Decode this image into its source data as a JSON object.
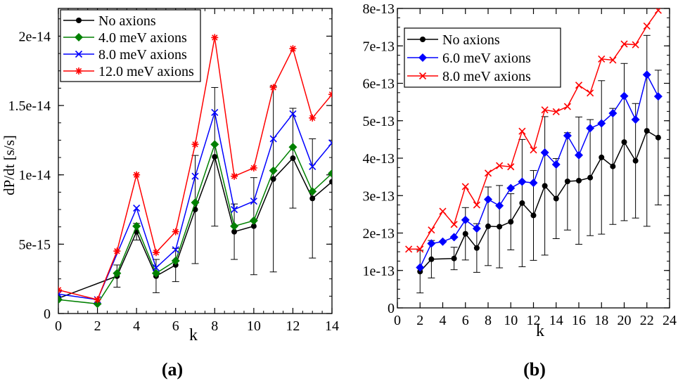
{
  "figure": {
    "panels": [
      "(a)",
      "(b)"
    ]
  },
  "chart_data": [
    {
      "type": "line",
      "panel_label": "(a)",
      "xlabel": "k",
      "ylabel": "dP/dt [s/s]",
      "xlim": [
        0,
        14
      ],
      "ylim": [
        0,
        2.2e-14
      ],
      "xticks": [
        "0",
        "2",
        "4",
        "6",
        "8",
        "10",
        "12",
        "14"
      ],
      "yticks": [
        "0",
        "5e-15",
        "1e-14",
        "1.5e-14",
        "2e-14"
      ],
      "grid": false,
      "legend_position": "top-left",
      "series": [
        {
          "name": "No axions",
          "color": "#000000",
          "marker": "circle",
          "x": [
            0,
            3,
            4,
            5,
            6,
            7,
            8,
            9,
            10,
            11,
            12,
            13,
            14
          ],
          "y": [
            1.1e-15,
            2.7e-15,
            5.9e-15,
            2.7e-15,
            3.5e-15,
            7.5e-15,
            1.13e-14,
            5.9e-15,
            6.3e-15,
            9.7e-15,
            1.12e-14,
            8.3e-15,
            9.5e-15
          ],
          "err": [
            null,
            8e-16,
            6e-16,
            1.2e-15,
            1.2e-15,
            3.9e-15,
            5e-15,
            2e-15,
            3.5e-15,
            6.7e-15,
            3.6e-15,
            4.3e-15,
            null
          ]
        },
        {
          "name": "4.0 meV axions",
          "color": "#008000",
          "marker": "diamond",
          "x": [
            0,
            2,
            3,
            4,
            5,
            6,
            7,
            8,
            9,
            10,
            11,
            12,
            13,
            14
          ],
          "y": [
            1e-15,
            7e-16,
            2.9e-15,
            6.3e-15,
            2.9e-15,
            3.8e-15,
            8e-15,
            1.22e-14,
            6.3e-15,
            6.7e-15,
            1.03e-14,
            1.2e-14,
            8.8e-15,
            1.01e-14
          ]
        },
        {
          "name": "8.0 meV axions",
          "color": "#0000ff",
          "marker": "x",
          "x": [
            0,
            2,
            4,
            5,
            6,
            7,
            8,
            9,
            10,
            11,
            12,
            13,
            14
          ],
          "y": [
            1.4e-15,
            1e-15,
            7.6e-15,
            3.3e-15,
            4.6e-15,
            9.9e-15,
            1.45e-14,
            7.5e-15,
            8.1e-15,
            1.26e-14,
            1.44e-14,
            1.06e-14,
            1.23e-14
          ]
        },
        {
          "name": "12.0 meV axions",
          "color": "#ff0000",
          "marker": "star",
          "x": [
            0,
            2,
            3,
            4,
            5,
            6,
            7,
            8,
            9,
            10,
            11,
            12,
            13,
            14
          ],
          "y": [
            1.7e-15,
            1e-15,
            4.5e-15,
            1e-14,
            4.4e-15,
            5.9e-15,
            1.22e-14,
            1.99e-14,
            9.9e-15,
            1.05e-14,
            1.63e-14,
            1.91e-14,
            1.41e-14,
            1.58e-14
          ]
        }
      ]
    },
    {
      "type": "line",
      "panel_label": "(b)",
      "xlabel": "k",
      "ylabel": "",
      "xlim": [
        0,
        24
      ],
      "ylim": [
        0,
        8e-13
      ],
      "xticks": [
        "0",
        "2",
        "4",
        "6",
        "8",
        "10",
        "12",
        "14",
        "16",
        "18",
        "20",
        "22",
        "24"
      ],
      "yticks": [
        "0",
        "1e-13",
        "2e-13",
        "3e-13",
        "4e-13",
        "5e-13",
        "6e-13",
        "7e-13",
        "8e-13"
      ],
      "grid": false,
      "legend_position": "top-left",
      "series": [
        {
          "name": "No axions",
          "color": "#000000",
          "marker": "circle",
          "x": [
            2,
            3,
            5,
            6,
            7,
            8,
            9,
            10,
            11,
            12,
            13,
            14,
            15,
            16,
            17,
            18,
            19,
            20,
            21,
            22,
            23
          ],
          "y": [
            9.7e-14,
            1.3e-13,
            1.32e-13,
            1.98e-13,
            1.6e-13,
            2.18e-13,
            2.17e-13,
            2.3e-13,
            2.8e-13,
            2.47e-13,
            3.26e-13,
            2.92e-13,
            3.38e-13,
            3.4e-13,
            3.48e-13,
            4.02e-13,
            3.78e-13,
            4.43e-13,
            3.93e-13,
            4.73e-13,
            4.55e-13
          ],
          "err": [
            5.7e-14,
            5e-14,
            3e-14,
            7e-14,
            6.5e-14,
            1.05e-13,
            1.1e-13,
            7.5e-14,
            1.7e-13,
            1.2e-13,
            1.85e-13,
            1.07e-13,
            1.3e-13,
            1.7e-13,
            1.55e-13,
            2.05e-13,
            1.55e-13,
            2.1e-13,
            1.53e-13,
            2.55e-13,
            1.8e-13
          ]
        },
        {
          "name": "6.0 meV axions",
          "color": "#0000ff",
          "marker": "diamond",
          "x": [
            2,
            3,
            4,
            5,
            6,
            7,
            8,
            9,
            10,
            11,
            12,
            13,
            14,
            15,
            16,
            17,
            18,
            19,
            20,
            21,
            22,
            23
          ],
          "y": [
            1.08e-13,
            1.72e-13,
            1.77e-13,
            1.89e-13,
            2.35e-13,
            2.12e-13,
            2.9e-13,
            2.73e-13,
            3.2e-13,
            3.37e-13,
            3.34e-13,
            4.15e-13,
            3.83e-13,
            4.6e-13,
            4.08e-13,
            4.8e-13,
            4.93e-13,
            5.2e-13,
            5.66e-13,
            5.03e-13,
            6.23e-13,
            5.65e-13
          ]
        },
        {
          "name": "8.0 meV axions",
          "color": "#ff0000",
          "marker": "x",
          "x": [
            1,
            2,
            3,
            4,
            5,
            6,
            7,
            8,
            9,
            10,
            11,
            12,
            13,
            14,
            15,
            16,
            17,
            18,
            19,
            20,
            21,
            22,
            23
          ],
          "y": [
            1.57e-13,
            1.57e-13,
            2.08e-13,
            2.58e-13,
            2.23e-13,
            3.24e-13,
            2.75e-13,
            3.6e-13,
            3.8e-13,
            3.77e-13,
            4.72e-13,
            4.22e-13,
            5.29e-13,
            5.24e-13,
            5.38e-13,
            5.95e-13,
            5.74e-13,
            6.65e-13,
            6.62e-13,
            7.05e-13,
            7.03e-13,
            7.53e-13,
            7.95e-13
          ]
        }
      ]
    }
  ]
}
